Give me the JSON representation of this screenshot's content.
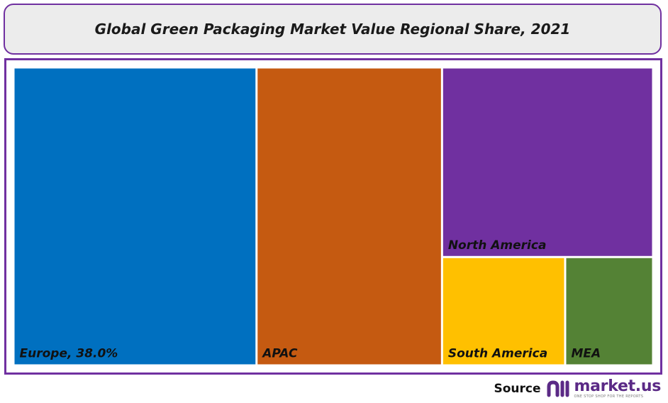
{
  "title": "Global Green Packaging Market Value Regional Share, 2021",
  "chart_data": {
    "type": "treemap",
    "title": "Global Green Packaging Market Value Regional Share, 2021",
    "unit": "%",
    "items": [
      {
        "name": "Europe",
        "label": "Europe, 38.0%",
        "value": 38.0,
        "color": "#0070c0"
      },
      {
        "name": "APAC",
        "label": "APAC",
        "value": 29.0,
        "color": "#c55a11"
      },
      {
        "name": "North America",
        "label": "North America",
        "value": 21.0,
        "color": "#7030a0"
      },
      {
        "name": "South America",
        "label": "South America",
        "value": 7.0,
        "color": "#ffc000"
      },
      {
        "name": "MEA",
        "label": "MEA",
        "value": 5.0,
        "color": "#548235"
      }
    ]
  },
  "footer": {
    "source_label": "Source",
    "brand_name": "market.us",
    "brand_tagline": "ONE STOP SHOP FOR THE REPORTS"
  },
  "colors": {
    "frame": "#7030a0",
    "title_bg": "#ececec",
    "brand": "#5b2a86"
  }
}
